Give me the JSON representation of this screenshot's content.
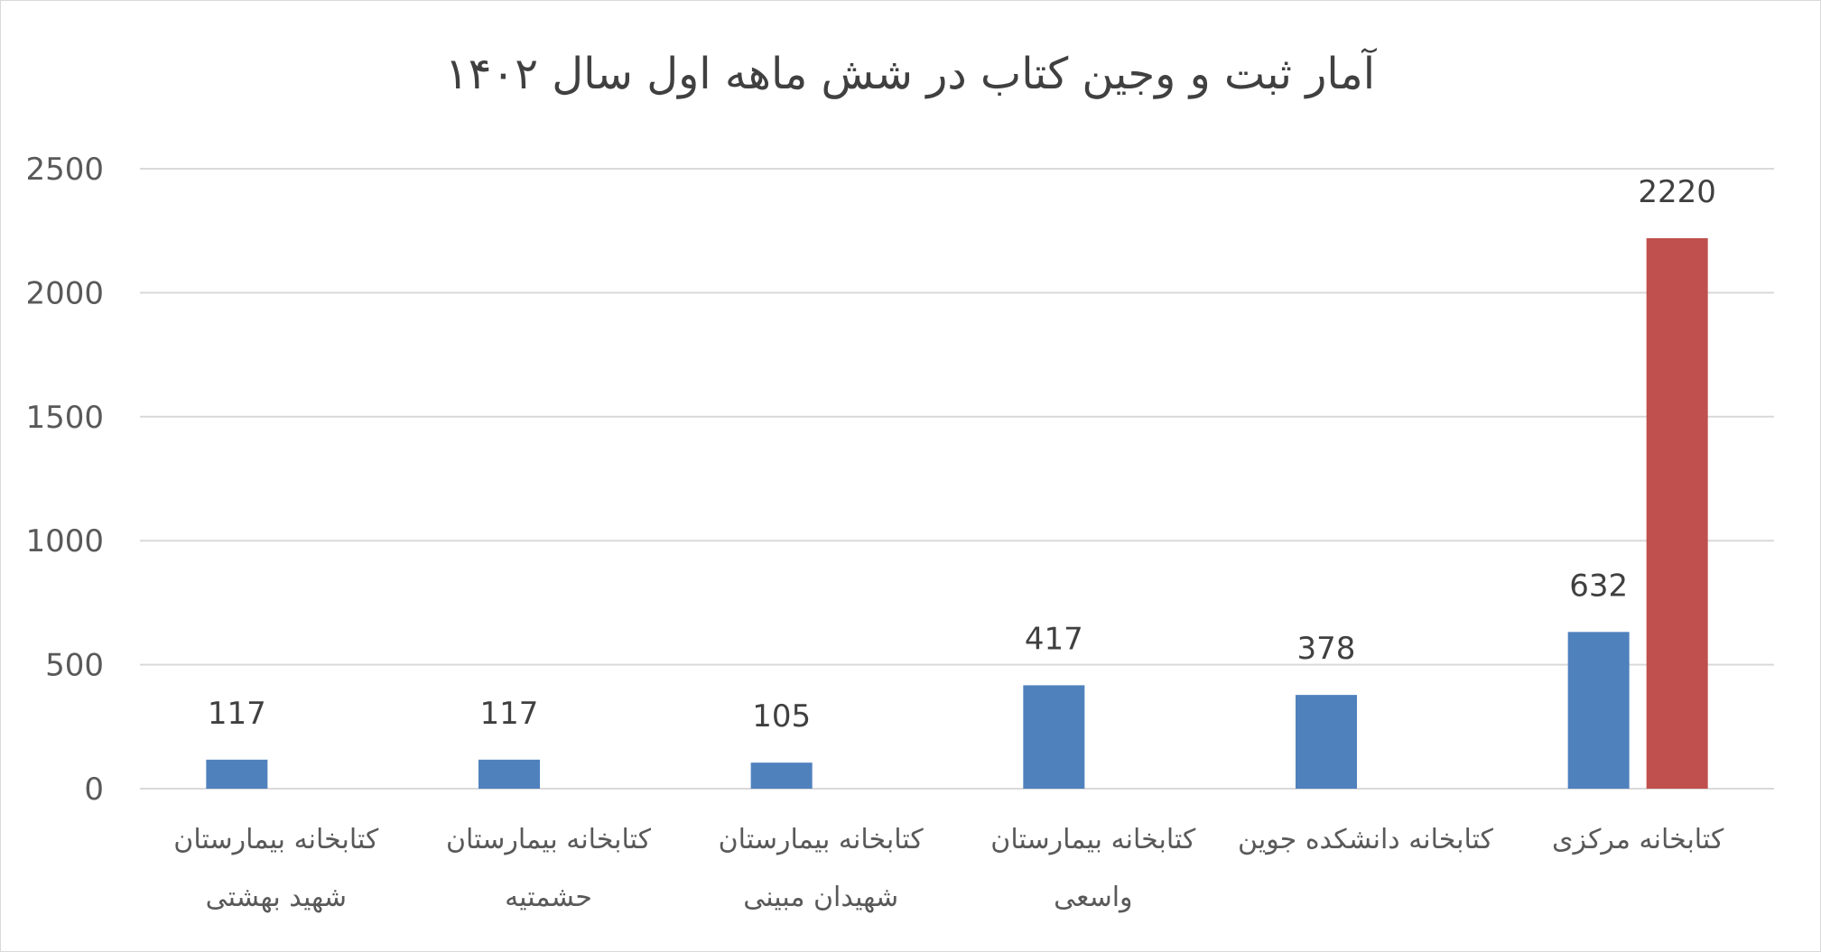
{
  "chart_data": {
    "type": "bar",
    "title": "آمار ثبت و وجین کتاب در شش ماهه اول سال ۱۴۰۲",
    "xlabel": "",
    "ylabel": "",
    "ylim": [
      0,
      2500
    ],
    "yticks": [
      0,
      500,
      1000,
      1500,
      2000,
      2500
    ],
    "grid": true,
    "legend": "none",
    "categories": [
      [
        "کتابخانه بیمارستان",
        "شهید بهشتی"
      ],
      [
        "کتابخانه بیمارستان",
        "حشمتیه"
      ],
      [
        "کتابخانه بیمارستان",
        "شهیدان مبینی"
      ],
      [
        "کتابخانه بیمارستان",
        "واسعی"
      ],
      [
        "کتابخانه دانشکده جوین"
      ],
      [
        "کتابخانه مرکزی"
      ]
    ],
    "series": [
      {
        "color": "#4f81bd",
        "values": [
          117,
          117,
          105,
          417,
          378,
          632
        ]
      },
      {
        "color": "#c0504d",
        "values": [
          null,
          null,
          null,
          null,
          null,
          2220
        ]
      }
    ]
  }
}
